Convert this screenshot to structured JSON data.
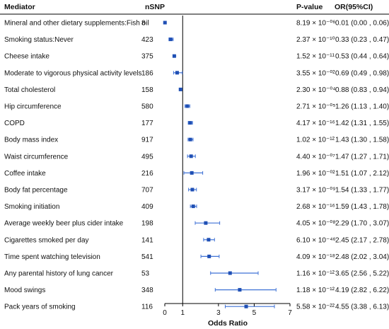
{
  "chart_data": {
    "type": "forest",
    "headers": {
      "mediator": "Mediator",
      "nsnp": "nSNP",
      "pvalue": "P-value",
      "or": "OR(95%CI)"
    },
    "xlabel": "Odds Ratio",
    "xlim": [
      0,
      7
    ],
    "xticks": [
      0,
      1,
      3,
      5,
      7
    ],
    "reference_line": 1,
    "colors": {
      "marker": "#1f4fb4",
      "ci": "#3f72d6",
      "rule": "#000000",
      "refline": "#000000"
    },
    "rows": [
      {
        "mediator": "Mineral and other dietary supplements:Fish oil",
        "nsnp": "8",
        "p_text": "8.19 × 10⁻⁰⁶",
        "or_text": "0.01 (0.00 , 0.06)",
        "or": 0.01,
        "lo": 0.0,
        "hi": 0.06
      },
      {
        "mediator": "Smoking status:Never",
        "nsnp": "423",
        "p_text": "2.37 × 10⁻¹⁰",
        "or_text": "0.33 (0.23 , 0.47)",
        "or": 0.33,
        "lo": 0.23,
        "hi": 0.47
      },
      {
        "mediator": "Cheese intake",
        "nsnp": "375",
        "p_text": "1.52 × 10⁻¹¹",
        "or_text": "0.53 (0.44 , 0.64)",
        "or": 0.53,
        "lo": 0.44,
        "hi": 0.64
      },
      {
        "mediator": "Moderate to vigorous physical activity levels",
        "nsnp": "186",
        "p_text": "3.55 × 10⁻⁰²",
        "or_text": "0.69 (0.49 , 0.98)",
        "or": 0.69,
        "lo": 0.49,
        "hi": 0.98
      },
      {
        "mediator": "Total cholesterol",
        "nsnp": "158",
        "p_text": "2.30 × 10⁻⁰⁴",
        "or_text": "0.88 (0.83 , 0.94)",
        "or": 0.88,
        "lo": 0.83,
        "hi": 0.94
      },
      {
        "mediator": "Hip circumference",
        "nsnp": "580",
        "p_text": "2.71 × 10⁻⁰⁵",
        "or_text": "1.26 (1.13 , 1.40)",
        "or": 1.26,
        "lo": 1.13,
        "hi": 1.4
      },
      {
        "mediator": "COPD",
        "nsnp": "177",
        "p_text": "4.17 × 10⁻¹⁶",
        "or_text": "1.42 (1.31 , 1.55)",
        "or": 1.42,
        "lo": 1.31,
        "hi": 1.55
      },
      {
        "mediator": "Body mass index",
        "nsnp": "917",
        "p_text": "1.02 × 10⁻¹²",
        "or_text": "1.43 (1.30 , 1.58)",
        "or": 1.43,
        "lo": 1.3,
        "hi": 1.58
      },
      {
        "mediator": "Waist circumference",
        "nsnp": "495",
        "p_text": "4.40 × 10⁻⁰⁷",
        "or_text": "1.47 (1.27 , 1.71)",
        "or": 1.47,
        "lo": 1.27,
        "hi": 1.71
      },
      {
        "mediator": "Coffee intake",
        "nsnp": "216",
        "p_text": "1.96 × 10⁻⁰²",
        "or_text": "1.51 (1.07 , 2.12)",
        "or": 1.51,
        "lo": 1.07,
        "hi": 2.12
      },
      {
        "mediator": "Body fat percentage",
        "nsnp": "707",
        "p_text": "3.17 × 10⁻⁰⁹",
        "or_text": "1.54 (1.33 , 1.77)",
        "or": 1.54,
        "lo": 1.33,
        "hi": 1.77
      },
      {
        "mediator": "Smoking initiation",
        "nsnp": "409",
        "p_text": "2.68 × 10⁻¹⁶",
        "or_text": "1.59 (1.43 , 1.78)",
        "or": 1.59,
        "lo": 1.43,
        "hi": 1.78
      },
      {
        "mediator": "Average weekly beer plus cider intake",
        "nsnp": "198",
        "p_text": "4.05 × 10⁻⁰⁸",
        "or_text": "2.29 (1.70 , 3.07)",
        "or": 2.29,
        "lo": 1.7,
        "hi": 3.07
      },
      {
        "mediator": "Cigarettes smoked per day",
        "nsnp": "141",
        "p_text": "6.10 × 10⁻⁴⁶",
        "or_text": "2.45 (2.17 , 2.78)",
        "or": 2.45,
        "lo": 2.17,
        "hi": 2.78
      },
      {
        "mediator": "Time spent watching television",
        "nsnp": "541",
        "p_text": "4.09 × 10⁻¹⁸",
        "or_text": "2.48 (2.02 , 3.04)",
        "or": 2.48,
        "lo": 2.02,
        "hi": 3.04
      },
      {
        "mediator": "Any parental history of lung cancer",
        "nsnp": "53",
        "p_text": "1.16 × 10⁻¹²",
        "or_text": "3.65 (2.56 , 5.22)",
        "or": 3.65,
        "lo": 2.56,
        "hi": 5.22
      },
      {
        "mediator": "Mood swings",
        "nsnp": "348",
        "p_text": "1.18 × 10⁻¹²",
        "or_text": "4.19 (2.82 , 6.22)",
        "or": 4.19,
        "lo": 2.82,
        "hi": 6.22
      },
      {
        "mediator": "Pack years of smoking",
        "nsnp": "116",
        "p_text": "5.58 × 10⁻²²",
        "or_text": "4.55 (3.38 , 6.13)",
        "or": 4.55,
        "lo": 3.38,
        "hi": 6.13
      }
    ]
  }
}
